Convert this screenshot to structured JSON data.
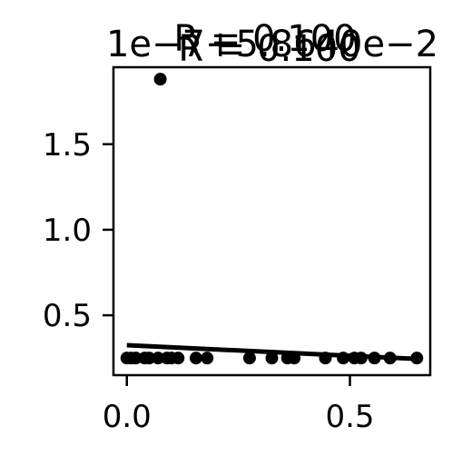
{
  "chart_data": {
    "type": "scatter",
    "title_lines": [
      "R = 0.100",
      "1e−7+5.8640e−2",
      "R = 0.100"
    ],
    "xlabel": "",
    "ylabel": "",
    "xlim": [
      -0.03,
      0.68
    ],
    "ylim": [
      0.15,
      1.95
    ],
    "xticks": [
      {
        "value": 0.0,
        "label": "0.0"
      },
      {
        "value": 0.5,
        "label": "0.5"
      }
    ],
    "yticks": [
      {
        "value": 0.5,
        "label": "0.5"
      },
      {
        "value": 1.0,
        "label": "1.0"
      },
      {
        "value": 1.5,
        "label": "1.5"
      }
    ],
    "points": [
      {
        "x": 0.075,
        "y": 1.88
      },
      {
        "x": 0.0,
        "y": 0.25
      },
      {
        "x": 0.01,
        "y": 0.25
      },
      {
        "x": 0.02,
        "y": 0.25
      },
      {
        "x": 0.04,
        "y": 0.25
      },
      {
        "x": 0.05,
        "y": 0.25
      },
      {
        "x": 0.07,
        "y": 0.25
      },
      {
        "x": 0.09,
        "y": 0.25
      },
      {
        "x": 0.1,
        "y": 0.25
      },
      {
        "x": 0.115,
        "y": 0.25
      },
      {
        "x": 0.155,
        "y": 0.25
      },
      {
        "x": 0.18,
        "y": 0.25
      },
      {
        "x": 0.275,
        "y": 0.25
      },
      {
        "x": 0.325,
        "y": 0.25
      },
      {
        "x": 0.36,
        "y": 0.25
      },
      {
        "x": 0.375,
        "y": 0.25
      },
      {
        "x": 0.445,
        "y": 0.25
      },
      {
        "x": 0.485,
        "y": 0.25
      },
      {
        "x": 0.51,
        "y": 0.25
      },
      {
        "x": 0.525,
        "y": 0.25
      },
      {
        "x": 0.555,
        "y": 0.25
      },
      {
        "x": 0.59,
        "y": 0.25
      },
      {
        "x": 0.65,
        "y": 0.25
      }
    ],
    "fit_line": {
      "x": [
        0.0,
        0.65
      ],
      "y": [
        0.325,
        0.245
      ]
    },
    "grid": false,
    "colors": {
      "points": "#000000",
      "line": "#000000",
      "axes": "#000000"
    }
  }
}
